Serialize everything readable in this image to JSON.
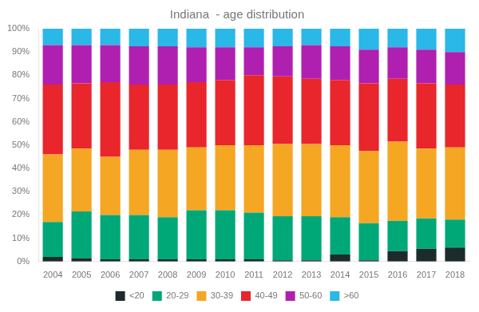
{
  "chart_data": {
    "type": "bar",
    "title": "Indiana  - age distribution",
    "categories": [
      "2004",
      "2005",
      "2006",
      "2007",
      "2008",
      "2009",
      "2010",
      "2011",
      "2012",
      "2013",
      "2014",
      "2015",
      "2016",
      "2017",
      "2018"
    ],
    "series": [
      {
        "name": "<20",
        "color": "#1c2b2b",
        "values": [
          2.0,
          1.5,
          1.0,
          1.0,
          1.0,
          1.0,
          1.0,
          1.0,
          0.5,
          0.5,
          3.0,
          0.5,
          4.5,
          5.5,
          6.0
        ]
      },
      {
        "name": "20-29",
        "color": "#00a878",
        "values": [
          15.0,
          20.0,
          19.0,
          19.0,
          18.0,
          21.0,
          21.0,
          20.0,
          19.0,
          19.0,
          16.0,
          16.0,
          13.0,
          13.0,
          12.0
        ]
      },
      {
        "name": "30-39",
        "color": "#f5a623",
        "values": [
          29.0,
          27.0,
          25.0,
          28.0,
          29.0,
          27.0,
          28.0,
          29.0,
          31.0,
          31.0,
          31.0,
          31.0,
          34.0,
          30.0,
          31.0
        ]
      },
      {
        "name": "40-49",
        "color": "#e8262c",
        "values": [
          30.0,
          28.0,
          32.0,
          28.0,
          28.0,
          28.0,
          28.0,
          30.0,
          29.0,
          28.0,
          28.0,
          29.0,
          27.0,
          28.0,
          27.0
        ]
      },
      {
        "name": "50-60",
        "color": "#b020b0",
        "values": [
          17.0,
          16.5,
          16.0,
          16.5,
          16.5,
          15.0,
          14.0,
          12.0,
          13.0,
          14.5,
          14.5,
          14.5,
          13.5,
          14.5,
          14.0
        ]
      },
      {
        "name": ">60",
        "color": "#29b8e8",
        "values": [
          7.0,
          7.0,
          7.0,
          7.5,
          7.5,
          8.0,
          8.0,
          8.0,
          7.5,
          7.0,
          7.5,
          9.0,
          8.0,
          9.0,
          10.0
        ]
      }
    ],
    "stacked": true,
    "ylim": [
      0,
      100
    ],
    "yticks": [
      {
        "value": 0,
        "label": "0%"
      },
      {
        "value": 10,
        "label": "10%"
      },
      {
        "value": 20,
        "label": "20%"
      },
      {
        "value": 30,
        "label": "30%"
      },
      {
        "value": 40,
        "label": "40%"
      },
      {
        "value": 50,
        "label": "50%"
      },
      {
        "value": 60,
        "label": "60%"
      },
      {
        "value": 70,
        "label": "70%"
      },
      {
        "value": 80,
        "label": "80%"
      },
      {
        "value": 90,
        "label": "90%"
      },
      {
        "value": 100,
        "label": "100%"
      }
    ],
    "grid": false,
    "legend": "bottom"
  }
}
